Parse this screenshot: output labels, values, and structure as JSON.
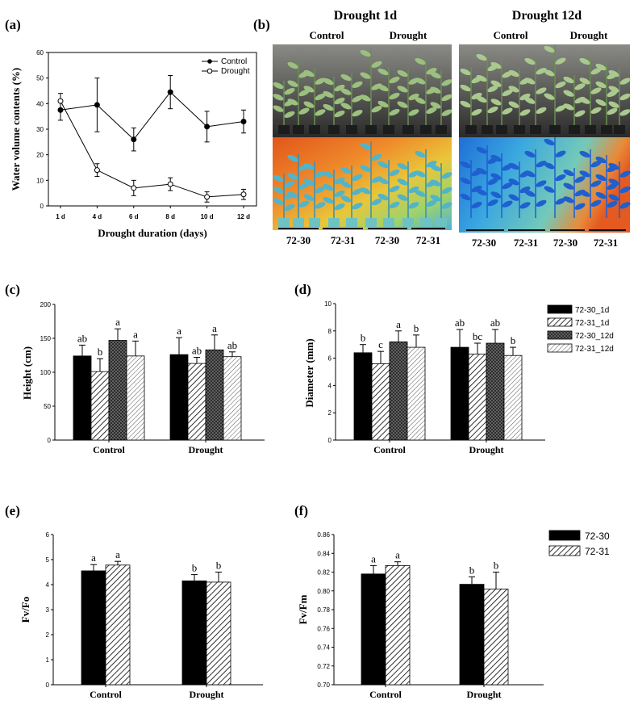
{
  "panels": {
    "a": "(a)",
    "b": "(b)",
    "c": "(c)",
    "d": "(d)",
    "e": "(e)",
    "f": "(f)"
  },
  "photos": {
    "left_title": "Drought 1d",
    "right_title": "Drought 12d",
    "left_sub": [
      "Control",
      "Drought"
    ],
    "right_sub": [
      "Control",
      "Drought"
    ],
    "left_lines": [
      "72-30",
      "72-31",
      "72-30",
      "72-31"
    ],
    "right_lines": [
      "72-30",
      "72-31",
      "72-30",
      "72-31"
    ]
  },
  "colors": {
    "bar_black": "#000000",
    "bar_hatch": "#ffffff",
    "plant_bg_dark": "#3c3c3c",
    "plant_green": "#8fb07a",
    "thermal_hot": "#e85a1a",
    "thermal_cool": "#3aa7e0"
  },
  "chart_data": [
    {
      "id": "a",
      "type": "line",
      "xlabel": "Drought duration (days)",
      "ylabel": "Water volume contents (%)",
      "categories": [
        "1 d",
        "4 d",
        "6 d",
        "8 d",
        "10 d",
        "12 d"
      ],
      "ylim": [
        0,
        60
      ],
      "yticks": [
        0,
        10,
        20,
        30,
        40,
        50,
        60
      ],
      "legend": [
        "Control",
        "Drought"
      ],
      "series": [
        {
          "name": "Control",
          "values": [
            37.5,
            39.5,
            26,
            44.5,
            31,
            33
          ],
          "errors": [
            4,
            10.5,
            4.5,
            6.5,
            6,
            4.5
          ]
        },
        {
          "name": "Drought",
          "values": [
            41,
            14,
            7,
            8.5,
            3.5,
            4.5
          ],
          "errors": [
            3,
            2.5,
            3,
            2.5,
            2,
            2
          ]
        }
      ]
    },
    {
      "id": "c",
      "type": "bar",
      "ylabel": "Height (cm)",
      "categories": [
        "Control",
        "Drought"
      ],
      "ylim": [
        0,
        200
      ],
      "yticks": [
        0,
        50,
        100,
        150,
        200
      ],
      "series": [
        {
          "name": "72-30_1d",
          "values": [
            124,
            126
          ],
          "errors": [
            16,
            25
          ],
          "letters": [
            "ab",
            "a"
          ]
        },
        {
          "name": "72-31_1d",
          "values": [
            101,
            113
          ],
          "errors": [
            19,
            9
          ],
          "letters": [
            "b",
            "ab"
          ]
        },
        {
          "name": "72-30_12d",
          "values": [
            147,
            133
          ],
          "errors": [
            17,
            22
          ],
          "letters": [
            "a",
            "a"
          ]
        },
        {
          "name": "72-31_12d",
          "values": [
            124,
            123
          ],
          "errors": [
            22,
            7
          ],
          "letters": [
            "a",
            "ab"
          ]
        }
      ]
    },
    {
      "id": "d",
      "type": "bar",
      "ylabel": "Diameter (mm)",
      "categories": [
        "Control",
        "Drought"
      ],
      "ylim": [
        0,
        10
      ],
      "yticks": [
        0,
        2,
        4,
        6,
        8,
        10
      ],
      "legend": [
        "72-30_1d",
        "72-31_1d",
        "72-30_12d",
        "72-31_12d"
      ],
      "series": [
        {
          "name": "72-30_1d",
          "values": [
            6.4,
            6.8
          ],
          "errors": [
            0.6,
            1.3
          ],
          "letters": [
            "b",
            "ab"
          ]
        },
        {
          "name": "72-31_1d",
          "values": [
            5.6,
            6.3
          ],
          "errors": [
            0.9,
            0.8
          ],
          "letters": [
            "c",
            "bc"
          ]
        },
        {
          "name": "72-30_12d",
          "values": [
            7.2,
            7.1
          ],
          "errors": [
            0.8,
            1.0
          ],
          "letters": [
            "a",
            "ab"
          ]
        },
        {
          "name": "72-31_12d",
          "values": [
            6.8,
            6.2
          ],
          "errors": [
            0.9,
            0.6
          ],
          "letters": [
            "b",
            "b"
          ]
        }
      ]
    },
    {
      "id": "e",
      "type": "bar",
      "ylabel": "Fv/Fo",
      "categories": [
        "Control",
        "Drought"
      ],
      "ylim": [
        0,
        6
      ],
      "yticks": [
        0,
        1,
        2,
        3,
        4,
        5,
        6
      ],
      "series": [
        {
          "name": "72-30",
          "values": [
            4.55,
            4.15
          ],
          "errors": [
            0.25,
            0.25
          ],
          "letters": [
            "a",
            "b"
          ]
        },
        {
          "name": "72-31",
          "values": [
            4.78,
            4.1
          ],
          "errors": [
            0.15,
            0.4
          ],
          "letters": [
            "a",
            "b"
          ]
        }
      ]
    },
    {
      "id": "f",
      "type": "bar",
      "ylabel": "Fv/Fm",
      "categories": [
        "Control",
        "Drought"
      ],
      "ylim": [
        0.7,
        0.86
      ],
      "yticks": [
        0.7,
        0.72,
        0.74,
        0.76,
        0.78,
        0.8,
        0.82,
        0.84,
        0.86
      ],
      "legend": [
        "72-30",
        "72-31"
      ],
      "series": [
        {
          "name": "72-30",
          "values": [
            0.818,
            0.807
          ],
          "errors": [
            0.009,
            0.008
          ],
          "letters": [
            "a",
            "b"
          ]
        },
        {
          "name": "72-31",
          "values": [
            0.827,
            0.802
          ],
          "errors": [
            0.004,
            0.018
          ],
          "letters": [
            "a",
            "b"
          ]
        }
      ]
    }
  ]
}
